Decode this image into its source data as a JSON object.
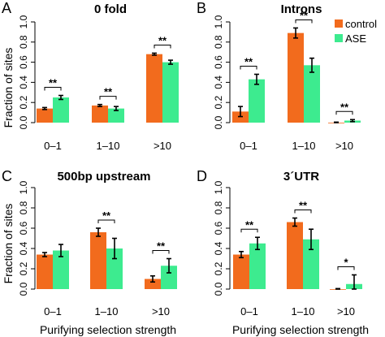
{
  "colors": {
    "control": "#F26B1D",
    "ASE": "#3DEB8F"
  },
  "ylabel": "Fraction of sites",
  "xlabel": "Purifying selection strength",
  "legend": {
    "position": "top-right of panel B",
    "items": [
      "control",
      "ASE"
    ]
  },
  "chart_data": [
    {
      "type": "bar",
      "panel": "A",
      "title": "0 fold",
      "categories": [
        "0–1",
        "1–10",
        ">10"
      ],
      "series": [
        {
          "name": "control",
          "values": [
            0.14,
            0.17,
            0.68
          ],
          "errors": [
            0.01,
            0.01,
            0.01
          ]
        },
        {
          "name": "ASE",
          "values": [
            0.25,
            0.14,
            0.6
          ],
          "errors": [
            0.02,
            0.02,
            0.02
          ]
        }
      ],
      "annotations": [
        "**",
        "**",
        "**"
      ],
      "ylim": [
        0,
        1
      ],
      "yticks": [
        "0.0",
        "0.2",
        "0.4",
        "0.6",
        "0.8",
        "1.0"
      ],
      "grid": false
    },
    {
      "type": "bar",
      "panel": "B",
      "title": "Introns",
      "categories": [
        "0–1",
        "1–10",
        ">10"
      ],
      "series": [
        {
          "name": "control",
          "values": [
            0.11,
            0.89,
            0.0
          ],
          "errors": [
            0.05,
            0.05,
            0.005
          ]
        },
        {
          "name": "ASE",
          "values": [
            0.43,
            0.57,
            0.02
          ],
          "errors": [
            0.05,
            0.07,
            0.01
          ]
        }
      ],
      "annotations": [
        "**",
        "**",
        "**"
      ],
      "ylim": [
        0,
        1
      ],
      "yticks": [
        "0.0",
        "0.2",
        "0.4",
        "0.6",
        "0.8",
        "1.0"
      ],
      "grid": false
    },
    {
      "type": "bar",
      "panel": "C",
      "title": "500bp upstream",
      "categories": [
        "0–1",
        "1–10",
        ">10"
      ],
      "series": [
        {
          "name": "control",
          "values": [
            0.34,
            0.56,
            0.1
          ],
          "errors": [
            0.02,
            0.04,
            0.03
          ]
        },
        {
          "name": "ASE",
          "values": [
            0.38,
            0.4,
            0.23
          ],
          "errors": [
            0.06,
            0.1,
            0.07
          ]
        }
      ],
      "annotations": [
        "",
        "**",
        "**"
      ],
      "ylim": [
        0,
        1
      ],
      "yticks": [
        "0.0",
        "0.2",
        "0.4",
        "0.6",
        "0.8",
        "1.0"
      ],
      "grid": false
    },
    {
      "type": "bar",
      "panel": "D",
      "title": "3´UTR",
      "categories": [
        "0–1",
        "1–10",
        ">10"
      ],
      "series": [
        {
          "name": "control",
          "values": [
            0.34,
            0.66,
            0.0
          ],
          "errors": [
            0.03,
            0.04,
            0.005
          ]
        },
        {
          "name": "ASE",
          "values": [
            0.45,
            0.49,
            0.05
          ],
          "errors": [
            0.06,
            0.1,
            0.09
          ]
        }
      ],
      "annotations": [
        "**",
        "**",
        "*"
      ],
      "ylim": [
        0,
        1
      ],
      "yticks": [
        "0.0",
        "0.2",
        "0.4",
        "0.6",
        "0.8",
        "1.0"
      ],
      "grid": false
    }
  ]
}
